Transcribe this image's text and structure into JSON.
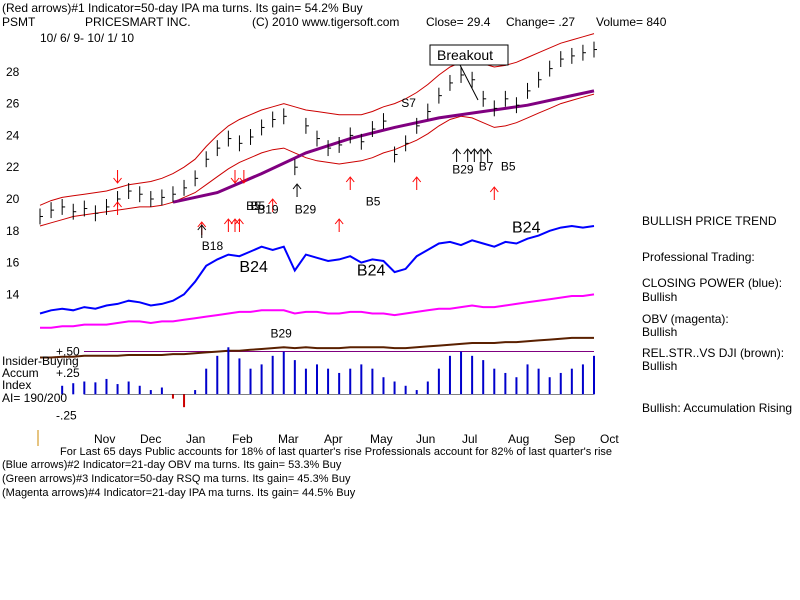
{
  "header": {
    "line1": "(Red arrows)#1 Indicator=50-day IPA ma turns. Its gain= 54.2% Buy",
    "symbol": "PSMT",
    "company": "PRICESMART INC.",
    "copyright": "(C) 2010 www.tigersoft.com",
    "close": "Close= 29.4",
    "change": "Change= .27",
    "volume": "Volume= 840",
    "date_range": "10/ 6/ 9- 10/ 1/ 10"
  },
  "labels": {
    "breakout": "Breakout",
    "insider_line1": "Insider-Buying",
    "insider_line2": "Accum",
    "insider_line3": "Index",
    "ai": "AI= 190/200"
  },
  "sidebar": [
    {
      "title": "BULLISH PRICE TREND",
      "value": ""
    },
    {
      "title": "Professional Trading:",
      "value": ""
    },
    {
      "title": "CLOSING POWER (blue):",
      "value": "Bullish"
    },
    {
      "title": "OBV (magenta):",
      "value": "Bullish"
    },
    {
      "title": "REL.STR..VS DJI (brown):",
      "value": "Bullish"
    },
    {
      "title": "Bullish: Accumulation Rising",
      "value": ""
    }
  ],
  "footer": {
    "line1": "For Last 65 days Public accounts for  18% of last quarter's rise  Professionals account for  82% of last quarter's rise",
    "line2": "(Blue arrows)#2 Indicator=21-day OBV ma turns. Its gain= 53.3% Buy",
    "line3": "(Green arrows)#3 Indicator=50-day RSQ ma turns. Its gain= 45.3% Buy",
    "line4": "(Magenta arrows)#4 Indicator=21-day IPA ma turns. Its gain= 44.5% Buy"
  },
  "colors": {
    "price": "#000000",
    "bands": "#cc0000",
    "ma": "#800080",
    "closing_power": "#0000ff",
    "obv": "#ff00ff",
    "rel_strength": "#5a2000",
    "accum": "#0000cc",
    "red_arrow": "#ff0000",
    "black_arrow": "#000000"
  },
  "chart_data": {
    "type": "line",
    "price_y_ticks": [
      28,
      26,
      24,
      22,
      20,
      18,
      16,
      14
    ],
    "ylim": [
      12.2,
      30
    ],
    "accum_ticks": [
      "+.50",
      "+.25",
      "-.25"
    ],
    "accum_ylim": [
      -0.3,
      0.6
    ],
    "months": [
      "Nov",
      "Dec",
      "Jan",
      "Feb",
      "Mar",
      "Apr",
      "May",
      "Jun",
      "Jul",
      "Aug",
      "Sep",
      "Oct"
    ],
    "price_x": [
      0,
      5,
      10,
      15,
      20,
      25,
      30,
      35,
      40,
      45,
      50,
      55,
      60,
      65,
      70,
      75,
      80,
      85,
      90,
      95,
      100,
      105,
      110,
      115,
      120,
      125,
      130,
      135,
      140,
      145,
      150,
      155,
      160,
      165,
      170,
      175,
      180,
      185,
      190,
      195,
      200,
      205,
      210,
      215,
      220,
      225,
      230,
      235,
      240,
      245,
      250
    ],
    "price": [
      18.9,
      19.3,
      19.5,
      19.2,
      19.4,
      19.1,
      19.5,
      20.0,
      20.5,
      20.3,
      20.0,
      20.1,
      20.3,
      20.7,
      21.3,
      22.5,
      23.2,
      23.8,
      23.5,
      23.9,
      24.5,
      25.0,
      25.2,
      22.0,
      24.6,
      23.8,
      23.2,
      23.4,
      24.0,
      23.6,
      24.4,
      24.9,
      22.8,
      23.5,
      24.6,
      25.5,
      26.5,
      27.3,
      27.8,
      27.5,
      26.3,
      25.7,
      26.3,
      25.9,
      26.8,
      27.5,
      28.2,
      28.8,
      29.0,
      29.2,
      29.4
    ],
    "upper_band": [
      19.6,
      19.9,
      20.1,
      20.2,
      20.3,
      20.4,
      20.5,
      20.7,
      20.9,
      21.0,
      21.1,
      21.3,
      21.6,
      22.0,
      22.5,
      23.3,
      24.0,
      24.6,
      25.0,
      25.3,
      25.6,
      25.8,
      26.0,
      25.8,
      25.6,
      25.5,
      25.4,
      25.3,
      25.3,
      25.3,
      25.5,
      25.8,
      26.0,
      26.3,
      26.7,
      27.2,
      27.8,
      28.3,
      28.6,
      28.7,
      28.5,
      28.3,
      28.4,
      28.6,
      28.9,
      29.2,
      29.5,
      29.8,
      30.0,
      30.2,
      30.4
    ],
    "lower_band": [
      18.3,
      18.5,
      18.7,
      18.9,
      19.0,
      19.1,
      19.2,
      19.3,
      19.4,
      19.5,
      19.5,
      19.6,
      19.8,
      20.1,
      20.4,
      20.9,
      21.4,
      21.9,
      22.3,
      22.6,
      22.9,
      23.1,
      23.2,
      22.9,
      22.6,
      22.4,
      22.3,
      22.2,
      22.3,
      22.4,
      22.6,
      22.9,
      23.1,
      23.4,
      23.7,
      24.1,
      24.6,
      25.0,
      25.2,
      25.1,
      24.8,
      24.5,
      24.6,
      24.8,
      25.1,
      25.4,
      25.7,
      26.0,
      26.2,
      26.4,
      26.6
    ],
    "ma_x": [
      60,
      80,
      100,
      120,
      140,
      160,
      180,
      200,
      220,
      240,
      250
    ],
    "ma": [
      19.8,
      20.4,
      21.6,
      22.9,
      23.8,
      24.5,
      25.1,
      25.5,
      25.9,
      26.5,
      26.8
    ],
    "closing_power": [
      12.8,
      13.0,
      13.1,
      13.0,
      13.2,
      13.1,
      13.3,
      13.4,
      13.6,
      13.5,
      13.3,
      13.4,
      13.6,
      14.0,
      14.8,
      15.8,
      16.2,
      16.5,
      16.4,
      16.7,
      17.0,
      16.8,
      17.0,
      15.5,
      16.5,
      16.3,
      16.1,
      16.2,
      16.4,
      16.0,
      16.2,
      16.1,
      15.4,
      15.6,
      16.4,
      16.8,
      17.2,
      17.3,
      17.1,
      17.4,
      17.2,
      17.0,
      17.3,
      17.2,
      17.5,
      17.7,
      18.0,
      18.2,
      18.3,
      18.2,
      18.3
    ],
    "obv": [
      11.9,
      11.9,
      12.0,
      12.0,
      12.1,
      12.1,
      12.1,
      12.2,
      12.3,
      12.3,
      12.2,
      12.3,
      12.3,
      12.4,
      12.5,
      12.6,
      12.7,
      12.8,
      12.9,
      12.9,
      13.0,
      13.0,
      13.0,
      12.8,
      12.9,
      12.9,
      12.8,
      12.8,
      12.9,
      12.9,
      12.8,
      12.8,
      12.7,
      12.8,
      12.9,
      13.0,
      13.1,
      13.1,
      13.2,
      13.3,
      13.2,
      13.2,
      13.3,
      13.4,
      13.5,
      13.6,
      13.7,
      13.8,
      13.9,
      13.9,
      14.0
    ],
    "rel_strength": [
      0.43,
      0.43,
      0.44,
      0.44,
      0.45,
      0.45,
      0.45,
      0.45,
      0.46,
      0.46,
      0.46,
      0.46,
      0.47,
      0.47,
      0.48,
      0.49,
      0.5,
      0.51,
      0.51,
      0.52,
      0.53,
      0.54,
      0.55,
      0.54,
      0.55,
      0.54,
      0.54,
      0.54,
      0.55,
      0.55,
      0.55,
      0.55,
      0.54,
      0.54,
      0.55,
      0.56,
      0.57,
      0.58,
      0.59,
      0.6,
      0.6,
      0.6,
      0.61,
      0.61,
      0.62,
      0.63,
      0.64,
      0.65,
      0.66,
      0.66,
      0.66
    ],
    "accum_x": [
      10,
      15,
      20,
      25,
      30,
      35,
      40,
      45,
      50,
      55,
      60,
      65,
      70,
      75,
      80,
      85,
      90,
      95,
      100,
      105,
      110,
      115,
      120,
      125,
      130,
      135,
      140,
      145,
      150,
      155,
      160,
      165,
      170,
      175,
      180,
      185,
      190,
      195,
      200,
      205,
      210,
      215,
      220,
      225,
      230,
      235,
      240,
      245,
      250
    ],
    "accum": [
      0.1,
      0.13,
      0.15,
      0.14,
      0.18,
      0.12,
      0.15,
      0.1,
      0.05,
      0.08,
      -0.05,
      -0.15,
      0.05,
      0.3,
      0.45,
      0.55,
      0.42,
      0.3,
      0.35,
      0.45,
      0.5,
      0.4,
      0.3,
      0.35,
      0.3,
      0.25,
      0.3,
      0.35,
      0.3,
      0.2,
      0.15,
      0.1,
      0.05,
      0.15,
      0.3,
      0.45,
      0.5,
      0.45,
      0.4,
      0.3,
      0.25,
      0.2,
      0.35,
      0.3,
      0.2,
      0.25,
      0.3,
      0.35,
      0.45
    ],
    "signals": [
      {
        "label": "B18",
        "x": 73,
        "y": 16.8
      },
      {
        "label": "B5",
        "x": 93,
        "y": 19.3
      },
      {
        "label": "B5",
        "x": 95,
        "y": 19.3
      },
      {
        "label": "B19",
        "x": 98,
        "y": 19.1
      },
      {
        "label": "B29",
        "x": 115,
        "y": 19.1
      },
      {
        "label": "B5",
        "x": 147,
        "y": 19.6
      },
      {
        "label": "B29",
        "x": 186,
        "y": 21.6
      },
      {
        "label": "B7",
        "x": 198,
        "y": 21.8
      },
      {
        "label": "B5",
        "x": 208,
        "y": 21.8
      },
      {
        "label": "S7",
        "x": 163,
        "y": 25.8
      },
      {
        "label": "B24",
        "x": 90,
        "y": 15.4
      },
      {
        "label": "B24",
        "x": 143,
        "y": 15.2
      },
      {
        "label": "B24",
        "x": 213,
        "y": 17.9
      },
      {
        "label": "B29",
        "x": 104,
        "y": 11.3
      }
    ],
    "red_up_arrows_x": [
      35,
      73,
      85,
      88,
      90,
      105,
      135,
      140,
      170,
      205
    ],
    "red_down_arrows_x": [
      35,
      88,
      92
    ],
    "black_up_arrows_x": [
      73,
      116,
      188,
      193,
      196,
      199,
      202
    ]
  }
}
